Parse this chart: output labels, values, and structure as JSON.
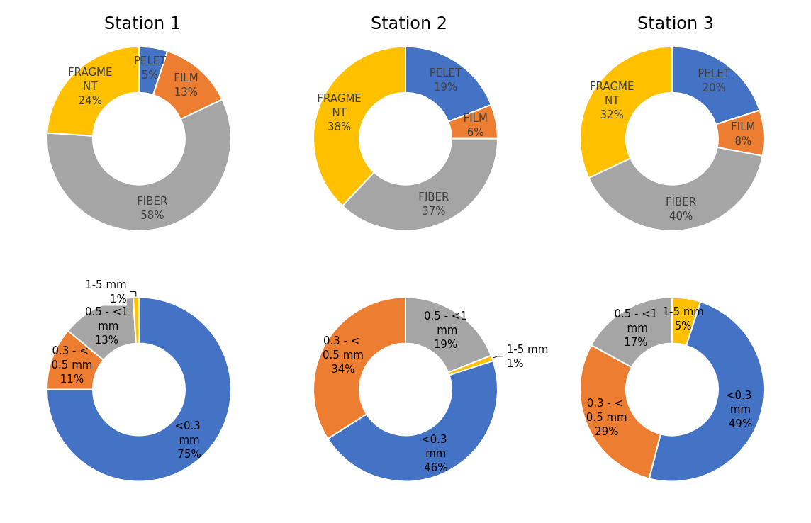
{
  "chart_data": [
    {
      "type": "donut",
      "title": "Station 1",
      "categories": [
        "PELET",
        "FILM",
        "FIBER",
        "FRAGMENT"
      ],
      "values": [
        5,
        13,
        58,
        24
      ],
      "value_labels": [
        "5%",
        "13%",
        "58%",
        "24%"
      ],
      "colors": [
        "#4472c4",
        "#ed7d31",
        "#a5a5a5",
        "#ffc000"
      ],
      "legend": false
    },
    {
      "type": "donut",
      "title": "Station 2",
      "categories": [
        "PELET",
        "FILM",
        "FIBER",
        "FRAGMENT"
      ],
      "values": [
        19,
        6,
        37,
        38
      ],
      "value_labels": [
        "19%",
        "6%",
        "37%",
        "38%"
      ],
      "colors": [
        "#4472c4",
        "#ed7d31",
        "#a5a5a5",
        "#ffc000"
      ],
      "legend": false
    },
    {
      "type": "donut",
      "title": "Station 3",
      "categories": [
        "PELET",
        "FILM",
        "FIBER",
        "FRAGMENT"
      ],
      "values": [
        20,
        8,
        40,
        32
      ],
      "value_labels": [
        "20%",
        "8%",
        "40%",
        "32%"
      ],
      "colors": [
        "#4472c4",
        "#ed7d31",
        "#a5a5a5",
        "#ffc000"
      ],
      "legend": false
    },
    {
      "type": "donut",
      "categories": [
        "<0.3 mm",
        "0.3 - < 0.5 mm",
        "0.5 - <1 mm",
        "1-5 mm"
      ],
      "values": [
        75,
        11,
        13,
        1
      ],
      "value_labels": [
        "75%",
        "11%",
        "13%",
        "1%"
      ],
      "colors": [
        "#4472c4",
        "#ed7d31",
        "#a5a5a5",
        "#ffc000"
      ],
      "legend": false
    },
    {
      "type": "donut",
      "categories": [
        "0.5 - <1 mm",
        "1-5 mm",
        "<0.3 mm",
        "0.3 - < 0.5 mm"
      ],
      "values": [
        19,
        1,
        46,
        34
      ],
      "value_labels": [
        "19%",
        "1%",
        "46%",
        "34%"
      ],
      "colors": [
        "#a5a5a5",
        "#ffc000",
        "#4472c4",
        "#ed7d31"
      ],
      "legend": false
    },
    {
      "type": "donut",
      "categories": [
        "1-5 mm",
        "<0.3 mm",
        "0.3 - < 0.5 mm",
        "0.5 - <1 mm"
      ],
      "values": [
        5,
        49,
        29,
        17
      ],
      "value_labels": [
        "5%",
        "49%",
        "29%",
        "17%"
      ],
      "colors": [
        "#ffc000",
        "#4472c4",
        "#ed7d31",
        "#a5a5a5"
      ],
      "legend": false
    }
  ]
}
